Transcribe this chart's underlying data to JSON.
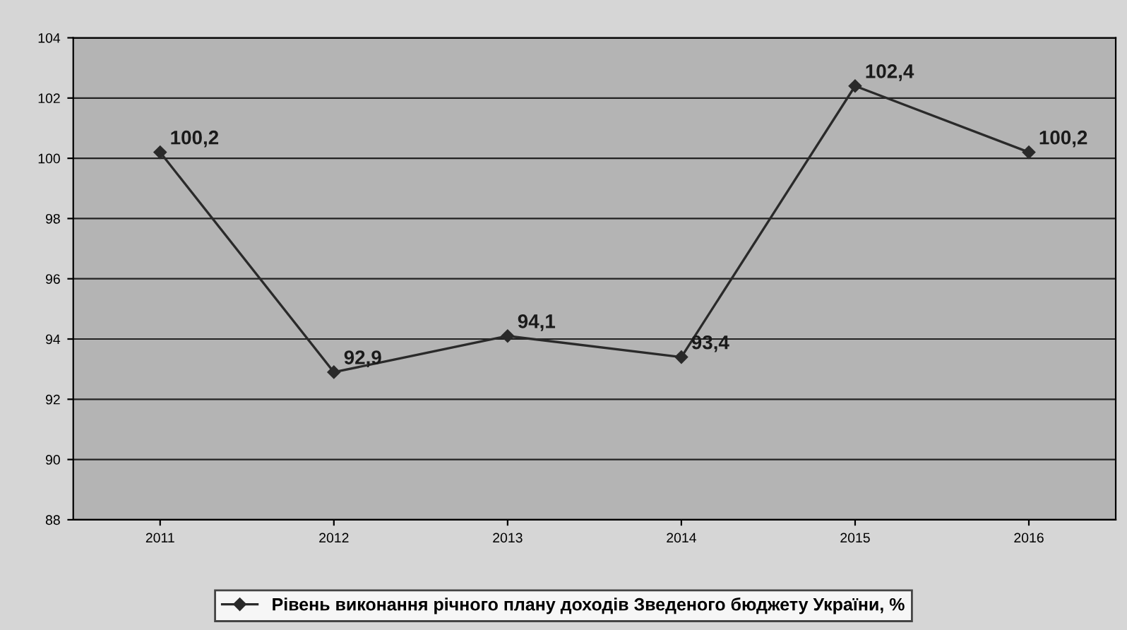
{
  "chart_data": {
    "type": "line",
    "categories": [
      "2011",
      "2012",
      "2013",
      "2014",
      "2015",
      "2016"
    ],
    "series": [
      {
        "name": "Рівень виконання річного плану доходів Зведеного бюджету України, %",
        "color": "#2a2a2a",
        "values": [
          100.2,
          92.9,
          94.1,
          93.4,
          102.4,
          100.2
        ],
        "value_labels": [
          "100,2",
          "92,9",
          "94,1",
          "93,4",
          "102,4",
          "100,2"
        ]
      }
    ],
    "ylim": [
      88,
      104
    ],
    "yticks": [
      88,
      90,
      92,
      94,
      96,
      98,
      100,
      102,
      104
    ],
    "grid": "y",
    "legend": "bottom",
    "marker": "diamond",
    "line_style": "solid"
  }
}
